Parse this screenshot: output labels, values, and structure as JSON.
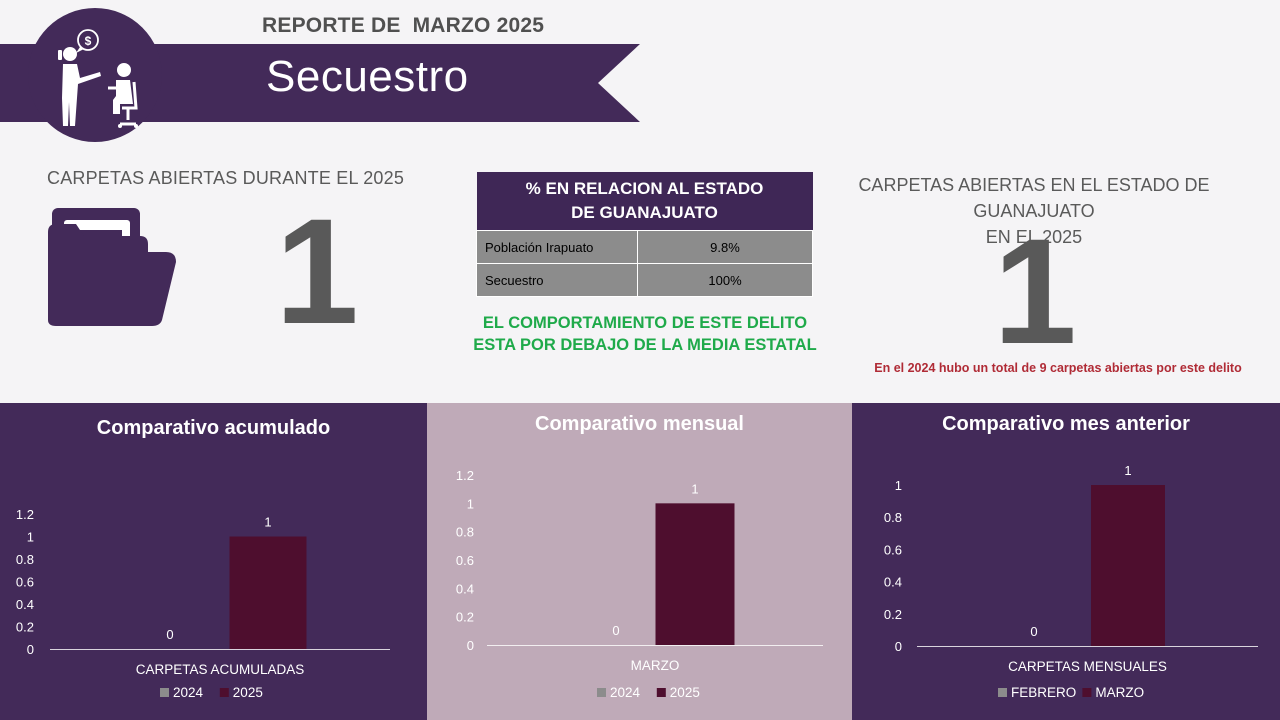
{
  "header": {
    "report_title": "REPORTE DE  MARZO 2025",
    "crime_title": "Secuestro"
  },
  "kpi_left": {
    "label": "CARPETAS ABIERTAS DURANTE EL 2025",
    "value": "1"
  },
  "relation_table": {
    "title_line1": "% EN RELACION AL ESTADO",
    "title_line2": "DE GUANAJUATO",
    "rows": [
      {
        "label": "Población Irapuato",
        "value": "9.8%"
      },
      {
        "label": "Secuestro",
        "value": "100%"
      }
    ],
    "note_line1": "EL COMPORTAMIENTO DE ESTE DELITO",
    "note_line2": "ESTA POR DEBAJO  DE LA MEDIA ESTATAL"
  },
  "kpi_right": {
    "label_line1": "CARPETAS ABIERTAS EN EL ESTADO DE GUANAJUATO",
    "label_line2": "EN EL 2025",
    "value": "1",
    "note": "En el 2024 hubo un total de 9 carpetas abiertas por este delito"
  },
  "colors": {
    "primary_purple": "#432a59",
    "mauve_panel": "#bfaab8",
    "series_gray": "#8c8c8c",
    "series_maroon": "#4e0e2e",
    "green_note": "#1faa4a",
    "red_note": "#b02b36"
  },
  "icons": {
    "header": "person-interrogating-seated-person-icon",
    "folder": "folder-icon"
  },
  "chart_data": [
    {
      "type": "bar",
      "title": "Comparativo acumulado",
      "categories": [
        "CARPETAS ACUMULADAS"
      ],
      "series": [
        {
          "name": "2024",
          "values": [
            0
          ]
        },
        {
          "name": "2025",
          "values": [
            1
          ]
        }
      ],
      "yticks": [
        "0",
        "0.2",
        "0.4",
        "0.6",
        "0.8",
        "1",
        "1.2"
      ],
      "ylim": [
        0,
        1.2
      ],
      "data_labels": true,
      "legend": "bottom",
      "grid": false
    },
    {
      "type": "bar",
      "title": "Comparativo mensual",
      "categories": [
        "MARZO"
      ],
      "series": [
        {
          "name": "2024",
          "values": [
            0
          ]
        },
        {
          "name": "2025",
          "values": [
            1
          ]
        }
      ],
      "yticks": [
        "0",
        "0.2",
        "0.4",
        "0.6",
        "0.8",
        "1",
        "1.2"
      ],
      "ylim": [
        0,
        1.2
      ],
      "data_labels": true,
      "legend": "bottom",
      "grid": false
    },
    {
      "type": "bar",
      "title": "Comparativo mes anterior",
      "categories": [
        "CARPETAS MENSUALES"
      ],
      "series": [
        {
          "name": "FEBRERO",
          "values": [
            0
          ]
        },
        {
          "name": "MARZO",
          "values": [
            1
          ]
        }
      ],
      "yticks": [
        "0",
        "0.2",
        "0.4",
        "0.6",
        "0.8",
        "1"
      ],
      "ylim": [
        0,
        1
      ],
      "data_labels": true,
      "legend": "bottom",
      "grid": false
    }
  ]
}
